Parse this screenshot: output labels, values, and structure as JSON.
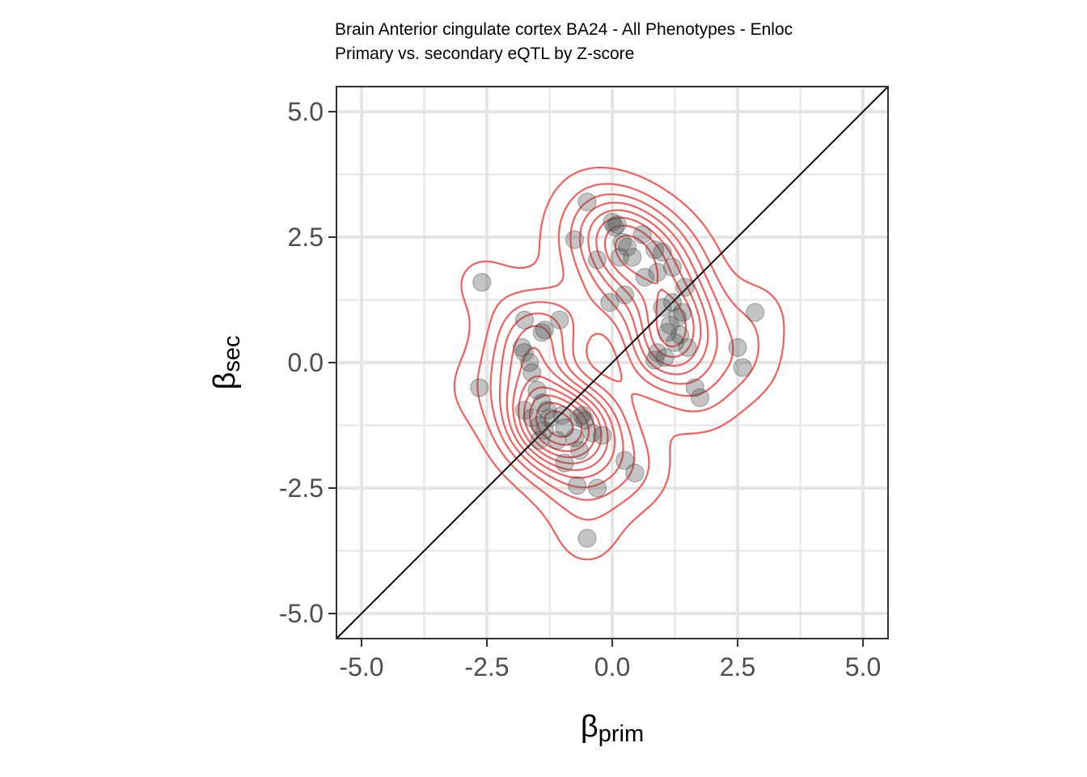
{
  "chart_data": {
    "type": "scatter",
    "title": "Brain Anterior cingulate cortex BA24 - All Phenotypes - Enloc",
    "subtitle": "Primary vs. secondary eQTL by Z-score",
    "xlabel": {
      "symbol": "β",
      "subscript": "prim"
    },
    "ylabel": {
      "symbol": "β",
      "subscript": "sec"
    },
    "xlim": [
      -5.5,
      5.5
    ],
    "ylim": [
      -5.5,
      5.5
    ],
    "x_ticks": [
      -5.0,
      -2.5,
      0.0,
      2.5,
      5.0
    ],
    "y_ticks": [
      -5.0,
      -2.5,
      0.0,
      2.5,
      5.0
    ],
    "x_tick_labels": [
      "-5.0",
      "-2.5",
      "0.0",
      "2.5",
      "5.0"
    ],
    "y_tick_labels": [
      "-5.0",
      "-2.5",
      "0.0",
      "2.5",
      "5.0"
    ],
    "grid": true,
    "reference_line": "y = x",
    "colors": {
      "points": "#555555",
      "density_contours": "#f0605e",
      "grid": "#e5e5e5",
      "reference_line": "#000000",
      "panel_border": "#333333"
    },
    "points": [
      [
        -0.5,
        3.2
      ],
      [
        -0.75,
        2.45
      ],
      [
        -0.3,
        2.05
      ],
      [
        0.0,
        2.8
      ],
      [
        0.05,
        2.7
      ],
      [
        0.1,
        2.75
      ],
      [
        0.2,
        2.4
      ],
      [
        0.3,
        2.3
      ],
      [
        0.15,
        2.1
      ],
      [
        0.4,
        2.1
      ],
      [
        0.6,
        2.55
      ],
      [
        0.85,
        2.25
      ],
      [
        1.0,
        2.2
      ],
      [
        1.2,
        1.9
      ],
      [
        0.9,
        1.8
      ],
      [
        0.65,
        1.7
      ],
      [
        1.45,
        1.5
      ],
      [
        0.25,
        1.35
      ],
      [
        -0.05,
        1.2
      ],
      [
        1.0,
        1.1
      ],
      [
        1.2,
        1.2
      ],
      [
        1.4,
        1.0
      ],
      [
        1.3,
        0.9
      ],
      [
        1.15,
        0.75
      ],
      [
        1.35,
        0.55
      ],
      [
        1.25,
        0.4
      ],
      [
        1.1,
        0.6
      ],
      [
        1.5,
        0.3
      ],
      [
        0.9,
        0.2
      ],
      [
        0.85,
        0.05
      ],
      [
        1.05,
        0.1
      ],
      [
        1.65,
        -0.5
      ],
      [
        1.75,
        -0.7
      ],
      [
        2.5,
        0.3
      ],
      [
        2.6,
        -0.1
      ],
      [
        2.85,
        1.0
      ],
      [
        -2.6,
        1.6
      ],
      [
        -2.65,
        -0.5
      ],
      [
        -1.75,
        0.85
      ],
      [
        -1.05,
        0.85
      ],
      [
        -1.4,
        0.6
      ],
      [
        -1.35,
        0.65
      ],
      [
        -1.8,
        0.3
      ],
      [
        -1.75,
        0.2
      ],
      [
        -1.65,
        0.0
      ],
      [
        -1.6,
        -0.2
      ],
      [
        -1.5,
        -0.55
      ],
      [
        -1.75,
        -0.95
      ],
      [
        -1.6,
        -1.1
      ],
      [
        -1.4,
        -0.8
      ],
      [
        -1.3,
        -0.95
      ],
      [
        -1.35,
        -1.35
      ],
      [
        -1.45,
        -1.55
      ],
      [
        -1.0,
        -1.05
      ],
      [
        -0.95,
        -1.3
      ],
      [
        -0.65,
        -1.1
      ],
      [
        -0.55,
        -1.15
      ],
      [
        -0.75,
        -1.5
      ],
      [
        -0.65,
        -1.75
      ],
      [
        -0.4,
        -1.4
      ],
      [
        -0.2,
        -1.45
      ],
      [
        -0.95,
        -2.0
      ],
      [
        -0.7,
        -2.45
      ],
      [
        -0.3,
        -2.5
      ],
      [
        0.25,
        -1.95
      ],
      [
        0.45,
        -2.2
      ],
      [
        -0.5,
        -3.5
      ],
      [
        -1.25,
        -1.1
      ],
      [
        -1.45,
        -1.25
      ],
      [
        -1.1,
        -1.55
      ],
      [
        -0.6,
        -1.05
      ]
    ],
    "density_centers": [
      {
        "x": -1.2,
        "y": -1.0
      },
      {
        "x": 0.1,
        "y": 2.5
      },
      {
        "x": 1.3,
        "y": 0.5
      }
    ]
  }
}
